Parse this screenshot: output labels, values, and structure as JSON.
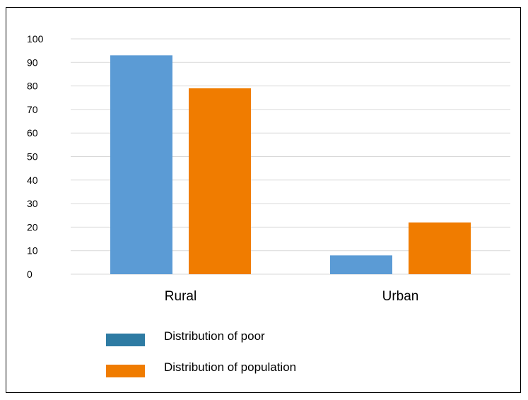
{
  "chart_data": {
    "type": "bar",
    "categories": [
      "Rural",
      "Urban"
    ],
    "series": [
      {
        "name": "Distribution of poor",
        "values": [
          93,
          8
        ],
        "color": "#5b9bd5",
        "legend_color": "#2e7ba3"
      },
      {
        "name": "Distribution of population",
        "values": [
          79,
          22
        ],
        "color": "#f07c00",
        "legend_color": "#f07c00"
      }
    ],
    "yticks": [
      "0",
      "10",
      "20",
      "30",
      "40",
      "50",
      "60",
      "70",
      "80",
      "90",
      "100"
    ],
    "ylim": [
      0,
      100
    ],
    "grid": true,
    "legend_position": "bottom-left",
    "title": "",
    "xlabel": "",
    "ylabel": ""
  }
}
